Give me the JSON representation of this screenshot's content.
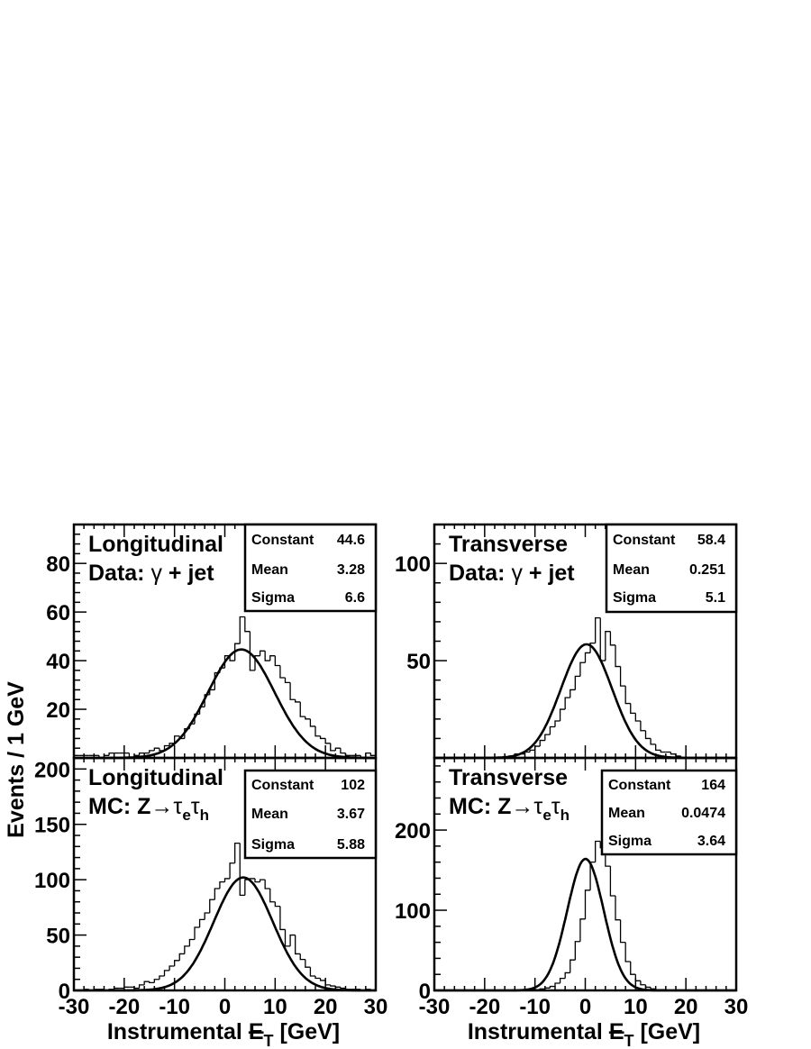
{
  "figure": {
    "y_axis_label": "Events / 1 GeV",
    "x_axis_label_prefix": "Instrumental ",
    "x_axis_label_met": "E",
    "x_axis_label_met_sub": "T",
    "x_axis_label_suffix": "  [GeV]"
  },
  "chart_data": [
    {
      "type": "bar",
      "panel": "top-left",
      "projection": "Longitudinal",
      "sample_prefix": "Data: ",
      "sample_symbol": "γ",
      "sample_suffix": " + jet",
      "xlim": [
        -30,
        30
      ],
      "ylim": [
        0,
        96
      ],
      "y_ticks_labeled": [
        20,
        40,
        60,
        80
      ],
      "x_ticks_labeled": [],
      "stats": {
        "Constant": "44.6",
        "Mean": "3.28",
        "Sigma": "6.6"
      },
      "fit": {
        "constant": 44.6,
        "mean": 3.28,
        "sigma": 6.6
      },
      "bin_width": 1,
      "bin_start": -30,
      "values": [
        1,
        1,
        1,
        1,
        1,
        0,
        1,
        2,
        2,
        2,
        2,
        0,
        1,
        2,
        2,
        3,
        4,
        3,
        5,
        6,
        9,
        8,
        12,
        14,
        18,
        21,
        26,
        28,
        35,
        37,
        42,
        40,
        47,
        58,
        52,
        36,
        42,
        44,
        40,
        42,
        38,
        33,
        31,
        24,
        23,
        17,
        16,
        13,
        9,
        8,
        6,
        3,
        4,
        2,
        1,
        1,
        1,
        0,
        2,
        1
      ],
      "fit_ranges": [
        -30,
        30
      ]
    },
    {
      "type": "bar",
      "panel": "top-right",
      "projection": "Transverse",
      "sample_prefix": "Data: ",
      "sample_symbol": "γ",
      "sample_suffix": " + jet",
      "xlim": [
        -30,
        30
      ],
      "ylim": [
        0,
        120
      ],
      "y_ticks_labeled": [
        50,
        100
      ],
      "x_ticks_labeled": [],
      "stats": {
        "Constant": "58.4",
        "Mean": "0.251",
        "Sigma": "5.1"
      },
      "fit": {
        "constant": 58.4,
        "mean": 0.251,
        "sigma": 5.1
      },
      "bin_width": 1,
      "bin_start": -30,
      "values": [
        0,
        0,
        0,
        0,
        0,
        0,
        0,
        0,
        0,
        0,
        0,
        0,
        0,
        0,
        0,
        1,
        2,
        2,
        3,
        4,
        6,
        9,
        12,
        16,
        19,
        25,
        31,
        35,
        42,
        49,
        54,
        59,
        72,
        50,
        65,
        58,
        47,
        37,
        28,
        23,
        19,
        14,
        10,
        7,
        4,
        3,
        3,
        2,
        1,
        0,
        0,
        0,
        0,
        0,
        0,
        0,
        0,
        0,
        0,
        0
      ],
      "fit_ranges": [
        -30,
        30
      ]
    },
    {
      "type": "bar",
      "panel": "bottom-left",
      "projection": "Longitudinal",
      "sample_prefix": "MC: Z",
      "sample_symbol": "→τ",
      "sample_sub1": "e",
      "sample_mid": "τ",
      "sample_sub2": "h",
      "xlim": [
        -30,
        30
      ],
      "ylim": [
        0,
        210
      ],
      "y_ticks_labeled": [
        0,
        50,
        100,
        150,
        200
      ],
      "x_ticks_labeled": [
        -30,
        -20,
        -10,
        0,
        10,
        20,
        30
      ],
      "stats": {
        "Constant": "102",
        "Mean": "3.67",
        "Sigma": "5.88"
      },
      "fit": {
        "constant": 102,
        "mean": 3.67,
        "sigma": 5.88
      },
      "bin_width": 1,
      "bin_start": -30,
      "values": [
        0,
        0,
        1,
        0,
        1,
        1,
        0,
        1,
        2,
        2,
        3,
        3,
        2,
        5,
        8,
        7,
        10,
        13,
        18,
        22,
        27,
        33,
        40,
        46,
        57,
        64,
        70,
        82,
        92,
        98,
        101,
        115,
        133,
        86,
        100,
        101,
        98,
        100,
        92,
        80,
        76,
        55,
        40,
        50,
        33,
        28,
        21,
        13,
        11,
        9,
        5,
        4,
        3,
        2,
        1,
        1,
        1,
        0,
        1,
        0
      ],
      "fit_ranges": [
        -30,
        30
      ]
    },
    {
      "type": "bar",
      "panel": "bottom-right",
      "projection": "Transverse",
      "sample_prefix": "MC: Z",
      "sample_symbol": "→τ",
      "sample_sub1": "e",
      "sample_mid": "τ",
      "sample_sub2": "h",
      "xlim": [
        -30,
        30
      ],
      "ylim": [
        0,
        290
      ],
      "y_ticks_labeled": [
        0,
        100,
        200
      ],
      "x_ticks_labeled": [
        -30,
        -20,
        -10,
        0,
        10,
        20,
        30
      ],
      "stats": {
        "Constant": "164",
        "Mean": "0.0474",
        "Sigma": "3.64"
      },
      "fit": {
        "constant": 164,
        "mean": 0.0474,
        "sigma": 3.64
      },
      "bin_width": 1,
      "bin_start": -30,
      "values": [
        0,
        0,
        0,
        0,
        0,
        0,
        0,
        0,
        0,
        0,
        0,
        0,
        0,
        0,
        0,
        0,
        0,
        0,
        0,
        1,
        1,
        2,
        3,
        5,
        9,
        15,
        22,
        38,
        61,
        89,
        125,
        160,
        186,
        178,
        155,
        118,
        88,
        60,
        36,
        20,
        12,
        7,
        4,
        2,
        1,
        1,
        0,
        0,
        0,
        0,
        0,
        0,
        0,
        0,
        0,
        0,
        0,
        0,
        0,
        0
      ],
      "fit_ranges": [
        -30,
        30
      ]
    }
  ]
}
